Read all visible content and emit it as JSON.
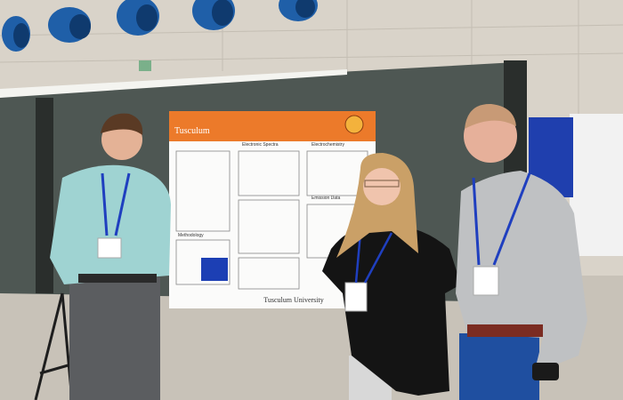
{
  "poster": {
    "header": "Tusculum",
    "sections": [
      "Electronic Spectra",
      "Electrochemistry",
      "Methodology",
      "Emission Data"
    ],
    "footer": "Tusculum University"
  }
}
